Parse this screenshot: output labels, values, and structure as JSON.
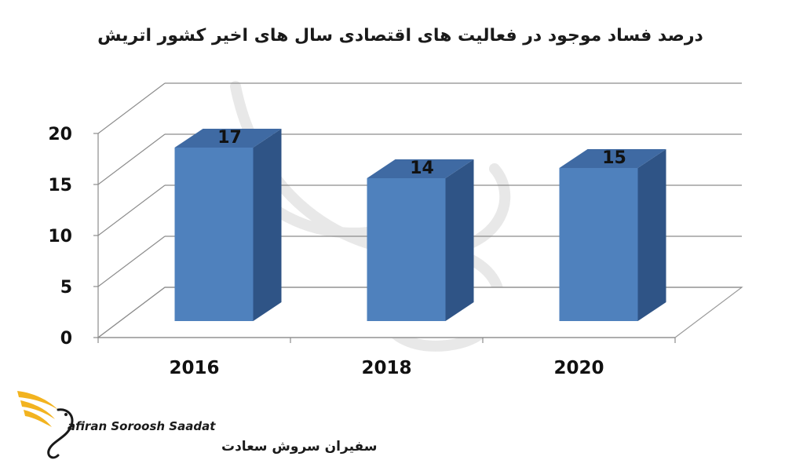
{
  "chart_data": {
    "type": "bar",
    "title": "درصد فساد موجود در فعالیت های اقتصادی سال های اخیر کشور اتریش",
    "categories": [
      "2016",
      "2018",
      "2020"
    ],
    "values": [
      17,
      14,
      15
    ],
    "ylim": [
      0,
      20
    ],
    "yticks": [
      0,
      5,
      10,
      15,
      20
    ],
    "grid": true,
    "three_d": true,
    "legend": "none",
    "bar_color": "#4f81bd"
  },
  "logo": {
    "name_en": "afiran Soroosh Saadat",
    "name_fa": "سفیران سروش سعادت",
    "color": "#f2b31f"
  }
}
